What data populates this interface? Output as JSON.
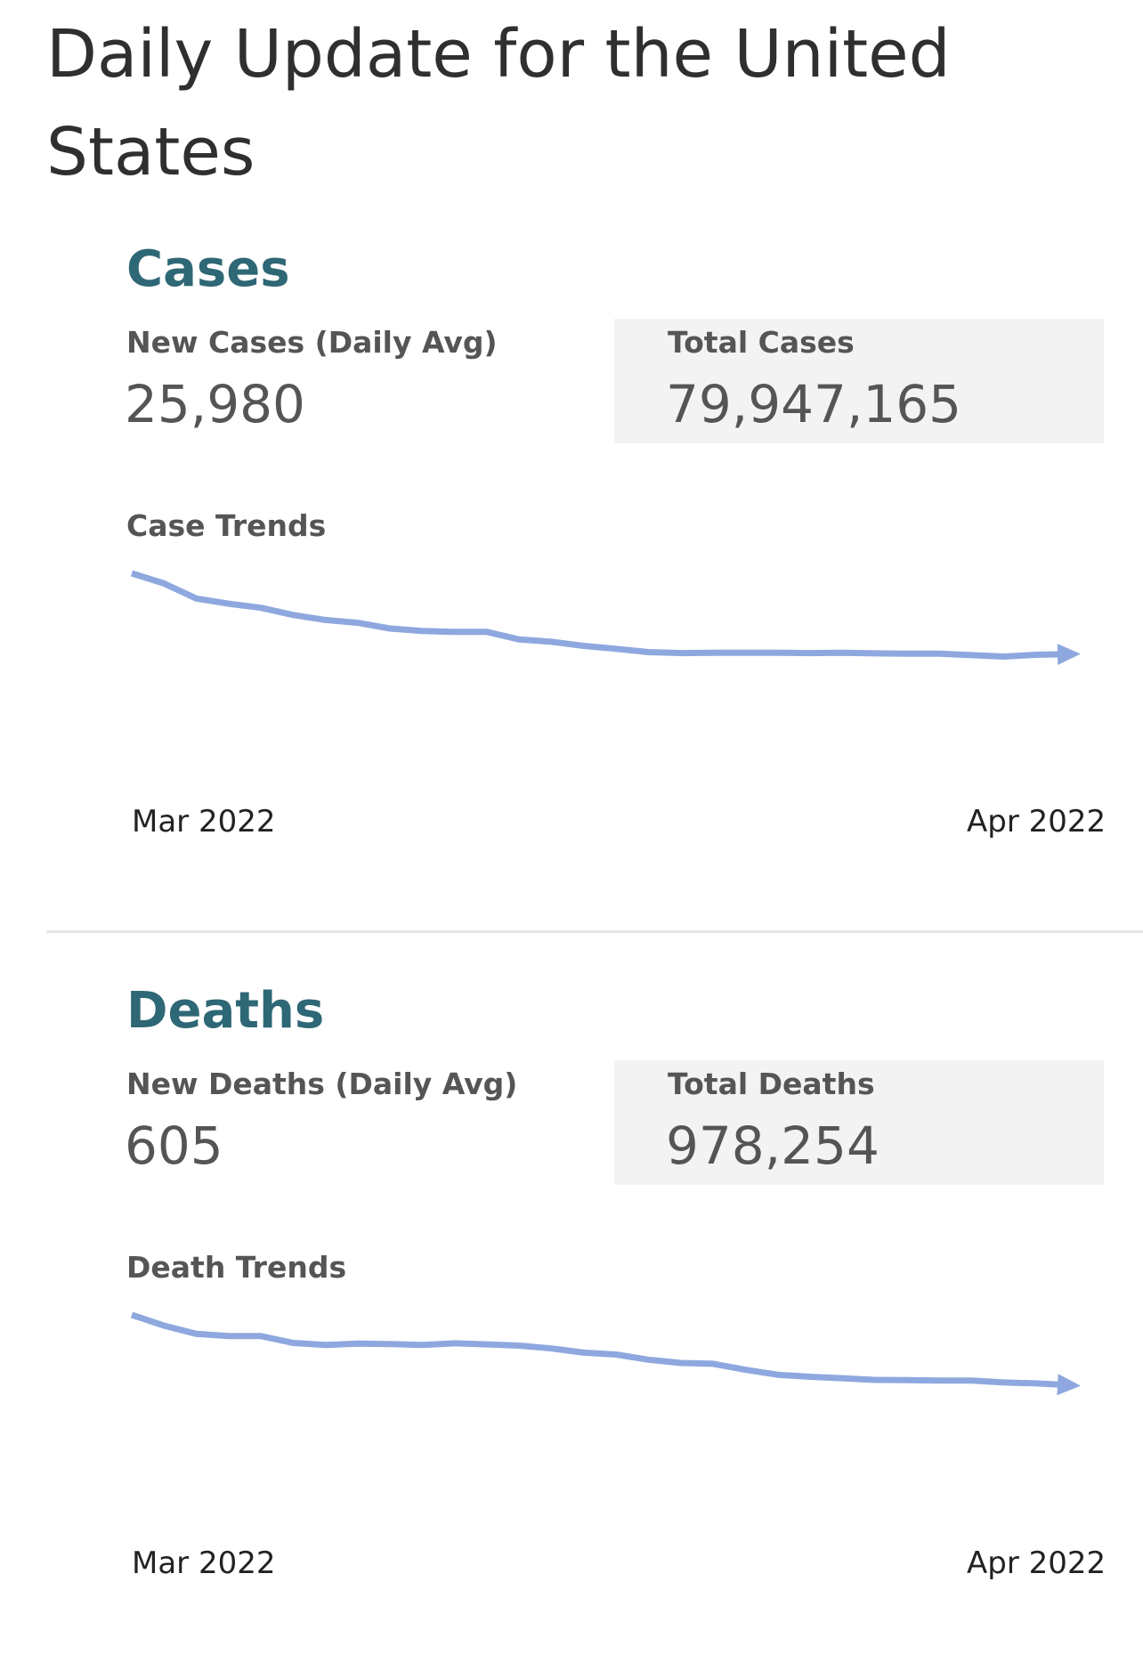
{
  "page": {
    "title": "Daily Update for the United States"
  },
  "cases": {
    "heading": "Cases",
    "new_label": "New Cases (Daily Avg)",
    "new_value": "25,980",
    "total_label": "Total Cases",
    "total_value": "79,947,165",
    "trend_label": "Case Trends",
    "x_start": "Mar 2022",
    "x_end": "Apr 2022"
  },
  "deaths": {
    "heading": "Deaths",
    "new_label": "New Deaths (Daily Avg)",
    "new_value": "605",
    "total_label": "Total Deaths",
    "total_value": "978,254",
    "trend_label": "Death Trends",
    "x_start": "Mar 2022",
    "x_end": "Apr 2022"
  },
  "colors": {
    "line": "#8ea8df",
    "heading": "#2e6775",
    "total_box": "#f3f3f3"
  },
  "chart_data": [
    {
      "type": "line",
      "title": "Case Trends",
      "x_tick_labels": [
        "Mar 2022",
        "Apr 2022"
      ],
      "xlabel": "",
      "ylabel": "",
      "grid": false,
      "legend": "none",
      "end_marker": "arrow",
      "series": [
        {
          "values": [
            100,
            93.5,
            83.9,
            80.6,
            78,
            73.4,
            70.2,
            68.4,
            64.8,
            63.2,
            62.6,
            62.6,
            57.8,
            56.3,
            53.7,
            51.8,
            49.7,
            49.1,
            49.3,
            49.3,
            49.3,
            49.1,
            49.3,
            48.9,
            48.7,
            48.7,
            47.8,
            46.9,
            48,
            48.4
          ]
        }
      ],
      "ylim": [
        0,
        100
      ]
    },
    {
      "type": "line",
      "title": "Death Trends",
      "x_tick_labels": [
        "Mar 2022",
        "Apr 2022"
      ],
      "xlabel": "",
      "ylabel": "",
      "grid": false,
      "legend": "none",
      "end_marker": "arrow",
      "series": [
        {
          "values": [
            100,
            93.1,
            87.9,
            86.5,
            86.5,
            82.1,
            80.8,
            81.7,
            81.4,
            80.8,
            81.9,
            81.2,
            80.4,
            78.6,
            75.9,
            74.7,
            71.4,
            69.3,
            68.8,
            65,
            61.8,
            60.5,
            59.6,
            58.5,
            58.4,
            58.1,
            58.1,
            56.9,
            56.3,
            55.2
          ]
        }
      ],
      "ylim": [
        0,
        100
      ]
    }
  ]
}
